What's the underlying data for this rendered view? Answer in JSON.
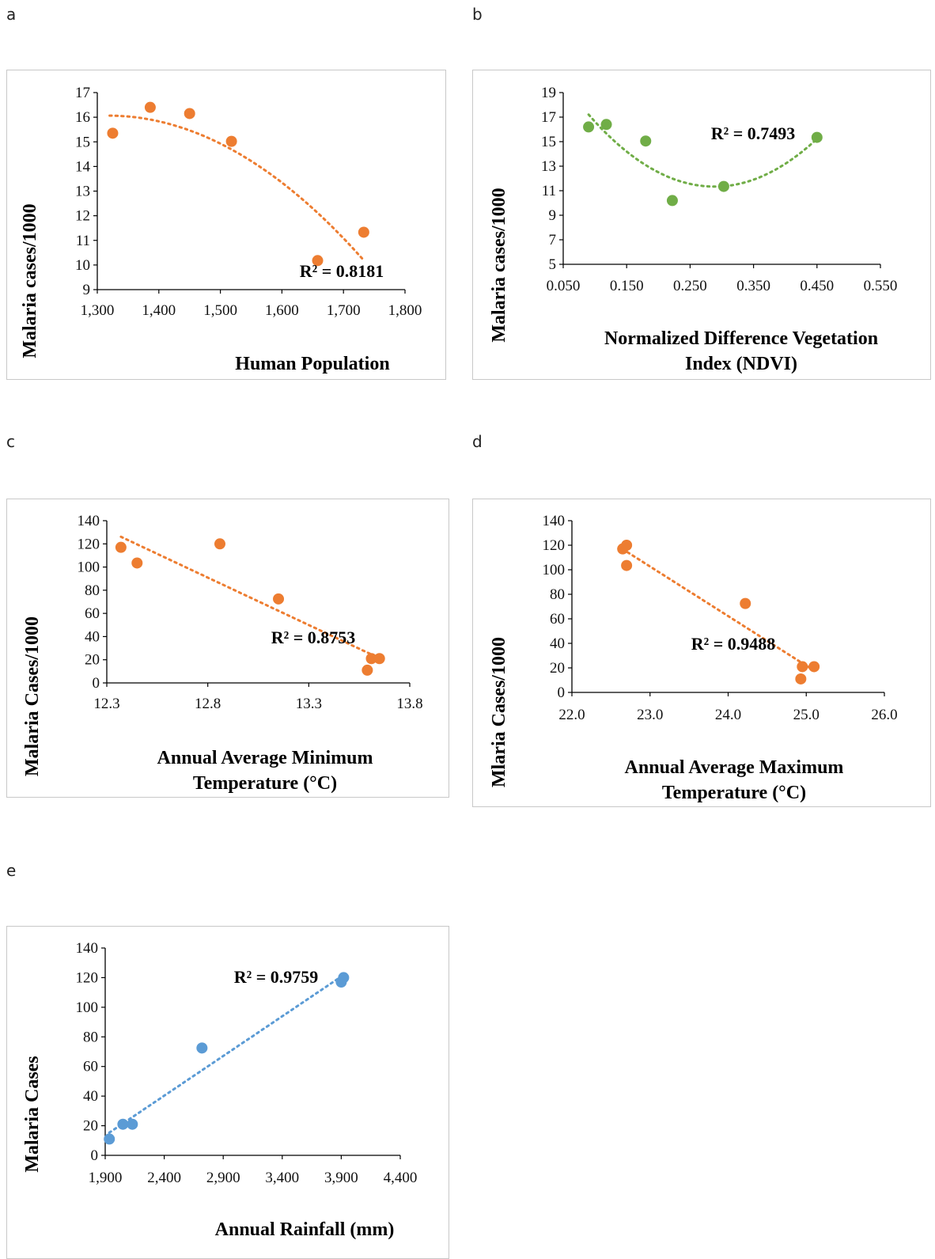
{
  "chart_data": [
    {
      "type": "scatter",
      "panel": "a",
      "ylabel": "Malaria cases/1000",
      "xlabel_lines": [
        "Human Population"
      ],
      "r2": "R² = 0.8181",
      "x_ticks": [
        "1,300",
        "1,400",
        "1,500",
        "1,600",
        "1,700",
        "1,800"
      ],
      "y_ticks": [
        "9",
        "10",
        "11",
        "12",
        "13",
        "14",
        "15",
        "16",
        "17"
      ],
      "xlim": [
        1300,
        1800
      ],
      "ylim": [
        9,
        17
      ],
      "color": "#ED7D31",
      "trendline": "polynomial-2",
      "points": [
        {
          "x": 1325,
          "y": 15.35
        },
        {
          "x": 1386,
          "y": 16.4
        },
        {
          "x": 1450,
          "y": 16.15
        },
        {
          "x": 1518,
          "y": 15.02
        },
        {
          "x": 1658,
          "y": 10.18
        },
        {
          "x": 1733,
          "y": 11.33
        }
      ],
      "trend_range": [
        1320,
        1733
      ]
    },
    {
      "type": "scatter",
      "panel": "b",
      "ylabel": "Malaria cases/1000",
      "xlabel_lines": [
        "Normalized Difference Vegetation",
        "Index (NDVI)"
      ],
      "r2": "R² = 0.7493",
      "x_ticks": [
        "0.050",
        "0.150",
        "0.250",
        "0.350",
        "0.450",
        "0.550"
      ],
      "y_ticks": [
        "5",
        "7",
        "9",
        "11",
        "13",
        "15",
        "17",
        "19"
      ],
      "xlim": [
        0.05,
        0.55
      ],
      "ylim": [
        5,
        19
      ],
      "color": "#70AD47",
      "trendline": "polynomial-2",
      "points": [
        {
          "x": 0.09,
          "y": 16.2
        },
        {
          "x": 0.118,
          "y": 16.4
        },
        {
          "x": 0.18,
          "y": 15.05
        },
        {
          "x": 0.222,
          "y": 10.2
        },
        {
          "x": 0.303,
          "y": 11.35
        },
        {
          "x": 0.45,
          "y": 15.35
        }
      ],
      "trend_range": [
        0.09,
        0.45
      ]
    },
    {
      "type": "scatter",
      "panel": "c",
      "ylabel": "Malaria Cases/1000",
      "xlabel_lines": [
        "Annual Average Minimum",
        "Temperature (°C)"
      ],
      "r2": "R² = 0.8753",
      "x_ticks": [
        "12.3",
        "12.8",
        "13.3",
        "13.8"
      ],
      "y_ticks": [
        "0",
        "20",
        "40",
        "60",
        "80",
        "100",
        "120",
        "140"
      ],
      "xlim": [
        12.3,
        13.8
      ],
      "ylim": [
        0,
        140
      ],
      "color": "#ED7D31",
      "trendline": "linear",
      "points": [
        {
          "x": 12.37,
          "y": 117
        },
        {
          "x": 12.45,
          "y": 103.5
        },
        {
          "x": 12.86,
          "y": 120
        },
        {
          "x": 13.15,
          "y": 72.5
        },
        {
          "x": 13.59,
          "y": 11
        },
        {
          "x": 13.61,
          "y": 21
        },
        {
          "x": 13.65,
          "y": 21
        }
      ],
      "trend_range": [
        12.37,
        13.65
      ]
    },
    {
      "type": "scatter",
      "panel": "d",
      "ylabel": "Mlaria Cases/1000",
      "xlabel_lines": [
        "Annual Average Maximum",
        "Temperature (°C)"
      ],
      "r2": "R² = 0.9488",
      "x_ticks": [
        "22.0",
        "23.0",
        "24.0",
        "25.0",
        "26.0"
      ],
      "y_ticks": [
        "0",
        "20",
        "40",
        "60",
        "80",
        "100",
        "120",
        "140"
      ],
      "xlim": [
        22,
        26
      ],
      "ylim": [
        0,
        140
      ],
      "color": "#ED7D31",
      "trendline": "linear",
      "points": [
        {
          "x": 22.65,
          "y": 117
        },
        {
          "x": 22.7,
          "y": 120
        },
        {
          "x": 22.7,
          "y": 103.5
        },
        {
          "x": 24.22,
          "y": 72.5
        },
        {
          "x": 24.93,
          "y": 11
        },
        {
          "x": 24.95,
          "y": 21
        },
        {
          "x": 25.1,
          "y": 21
        }
      ],
      "trend_range": [
        22.65,
        25.1
      ]
    },
    {
      "type": "scatter",
      "panel": "e",
      "ylabel": "Malaria Cases",
      "xlabel_lines": [
        "Annual Rainfall (mm)"
      ],
      "r2": "R² = 0.9759",
      "x_ticks": [
        "1,900",
        "2,400",
        "2,900",
        "3,400",
        "3,900",
        "4,400"
      ],
      "y_ticks": [
        "0",
        "20",
        "40",
        "60",
        "80",
        "100",
        "120",
        "140"
      ],
      "xlim": [
        1900,
        4400
      ],
      "ylim": [
        0,
        140
      ],
      "color": "#5B9BD5",
      "trendline": "linear",
      "points": [
        {
          "x": 1935,
          "y": 11
        },
        {
          "x": 2050,
          "y": 21
        },
        {
          "x": 2130,
          "y": 21
        },
        {
          "x": 2720,
          "y": 72.5
        },
        {
          "x": 3900,
          "y": 117
        },
        {
          "x": 3920,
          "y": 120
        }
      ],
      "trend_range": [
        1935,
        3920
      ]
    }
  ]
}
